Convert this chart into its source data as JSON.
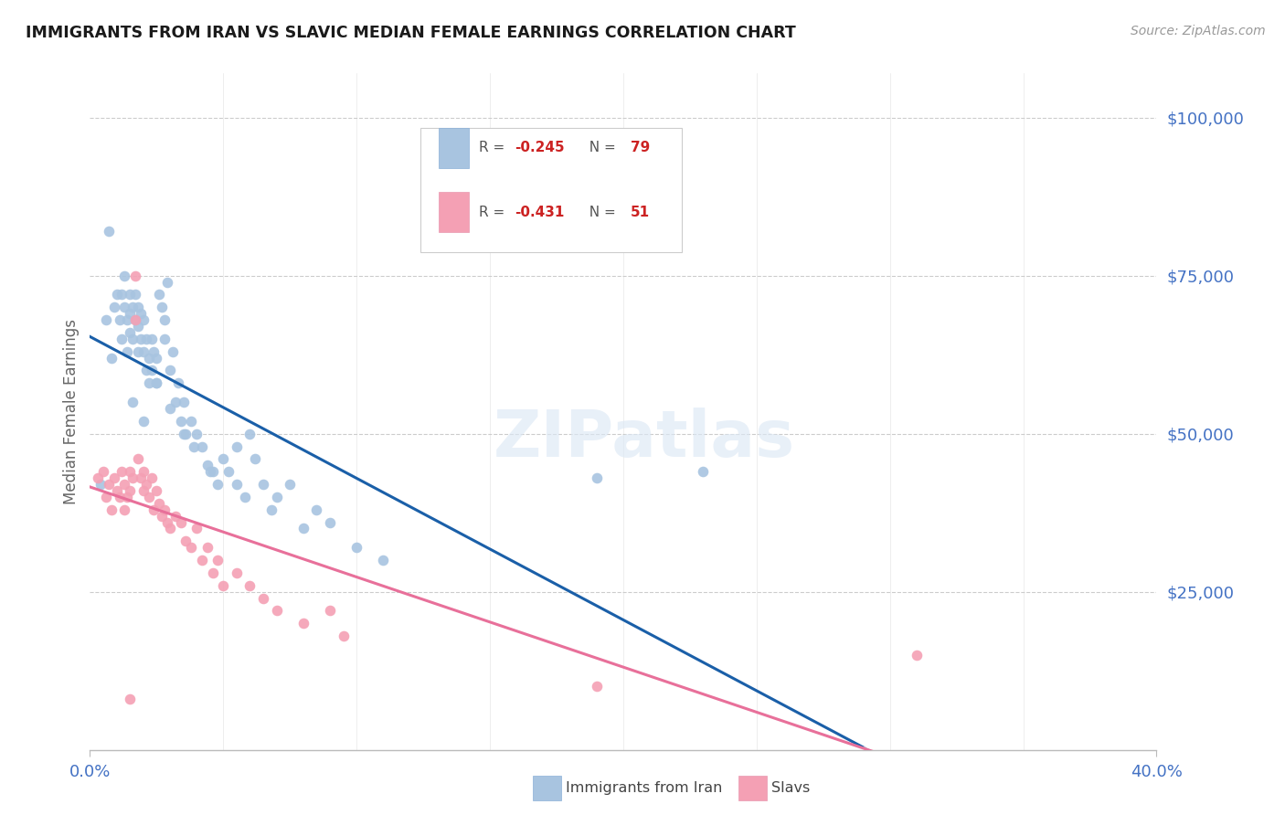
{
  "title": "IMMIGRANTS FROM IRAN VS SLAVIC MEDIAN FEMALE EARNINGS CORRELATION CHART",
  "source": "Source: ZipAtlas.com",
  "ylabel": "Median Female Earnings",
  "ytick_labels": [
    "$25,000",
    "$50,000",
    "$75,000",
    "$100,000"
  ],
  "ytick_values": [
    25000,
    50000,
    75000,
    100000
  ],
  "ylim": [
    0,
    107000
  ],
  "xlim": [
    0.0,
    0.4
  ],
  "watermark": "ZIPatlas",
  "title_color": "#1a1a1a",
  "tick_label_color": "#4472c4",
  "blue_scatter": "#a8c4e0",
  "pink_scatter": "#f4a0b4",
  "blue_line_color": "#1a5fa8",
  "pink_line_color": "#e8709a",
  "blue_dashed_color": "#a0b8d8",
  "iran_x": [
    0.004,
    0.006,
    0.007,
    0.008,
    0.009,
    0.01,
    0.011,
    0.012,
    0.012,
    0.013,
    0.013,
    0.014,
    0.014,
    0.015,
    0.015,
    0.015,
    0.016,
    0.016,
    0.017,
    0.017,
    0.018,
    0.018,
    0.018,
    0.019,
    0.019,
    0.02,
    0.02,
    0.021,
    0.021,
    0.022,
    0.022,
    0.023,
    0.023,
    0.024,
    0.025,
    0.025,
    0.026,
    0.027,
    0.028,
    0.028,
    0.029,
    0.03,
    0.031,
    0.032,
    0.033,
    0.034,
    0.035,
    0.036,
    0.038,
    0.039,
    0.04,
    0.042,
    0.044,
    0.046,
    0.048,
    0.05,
    0.052,
    0.055,
    0.058,
    0.06,
    0.062,
    0.065,
    0.068,
    0.07,
    0.075,
    0.08,
    0.085,
    0.09,
    0.1,
    0.11,
    0.016,
    0.02,
    0.025,
    0.03,
    0.035,
    0.045,
    0.055,
    0.19,
    0.23
  ],
  "iran_y": [
    42000,
    68000,
    82000,
    62000,
    70000,
    72000,
    68000,
    65000,
    72000,
    70000,
    75000,
    68000,
    63000,
    66000,
    69000,
    72000,
    70000,
    65000,
    68000,
    72000,
    63000,
    67000,
    70000,
    65000,
    69000,
    63000,
    68000,
    60000,
    65000,
    58000,
    62000,
    65000,
    60000,
    63000,
    58000,
    62000,
    72000,
    70000,
    68000,
    65000,
    74000,
    60000,
    63000,
    55000,
    58000,
    52000,
    55000,
    50000,
    52000,
    48000,
    50000,
    48000,
    45000,
    44000,
    42000,
    46000,
    44000,
    42000,
    40000,
    50000,
    46000,
    42000,
    38000,
    40000,
    42000,
    35000,
    38000,
    36000,
    32000,
    30000,
    55000,
    52000,
    58000,
    54000,
    50000,
    44000,
    48000,
    43000,
    44000
  ],
  "slavic_x": [
    0.003,
    0.005,
    0.006,
    0.007,
    0.008,
    0.009,
    0.01,
    0.011,
    0.012,
    0.013,
    0.013,
    0.014,
    0.015,
    0.015,
    0.016,
    0.017,
    0.017,
    0.018,
    0.019,
    0.02,
    0.02,
    0.021,
    0.022,
    0.023,
    0.024,
    0.025,
    0.026,
    0.027,
    0.028,
    0.029,
    0.03,
    0.032,
    0.034,
    0.036,
    0.038,
    0.04,
    0.042,
    0.044,
    0.046,
    0.048,
    0.05,
    0.055,
    0.06,
    0.065,
    0.07,
    0.08,
    0.09,
    0.095,
    0.19,
    0.31,
    0.015
  ],
  "slavic_y": [
    43000,
    44000,
    40000,
    42000,
    38000,
    43000,
    41000,
    40000,
    44000,
    42000,
    38000,
    40000,
    44000,
    41000,
    43000,
    75000,
    68000,
    46000,
    43000,
    41000,
    44000,
    42000,
    40000,
    43000,
    38000,
    41000,
    39000,
    37000,
    38000,
    36000,
    35000,
    37000,
    36000,
    33000,
    32000,
    35000,
    30000,
    32000,
    28000,
    30000,
    26000,
    28000,
    26000,
    24000,
    22000,
    20000,
    22000,
    18000,
    10000,
    15000,
    8000
  ],
  "iran_line_x_solid_end": 0.29,
  "iran_line_x_dashed_end": 0.4,
  "slavic_line_x_end": 0.4
}
